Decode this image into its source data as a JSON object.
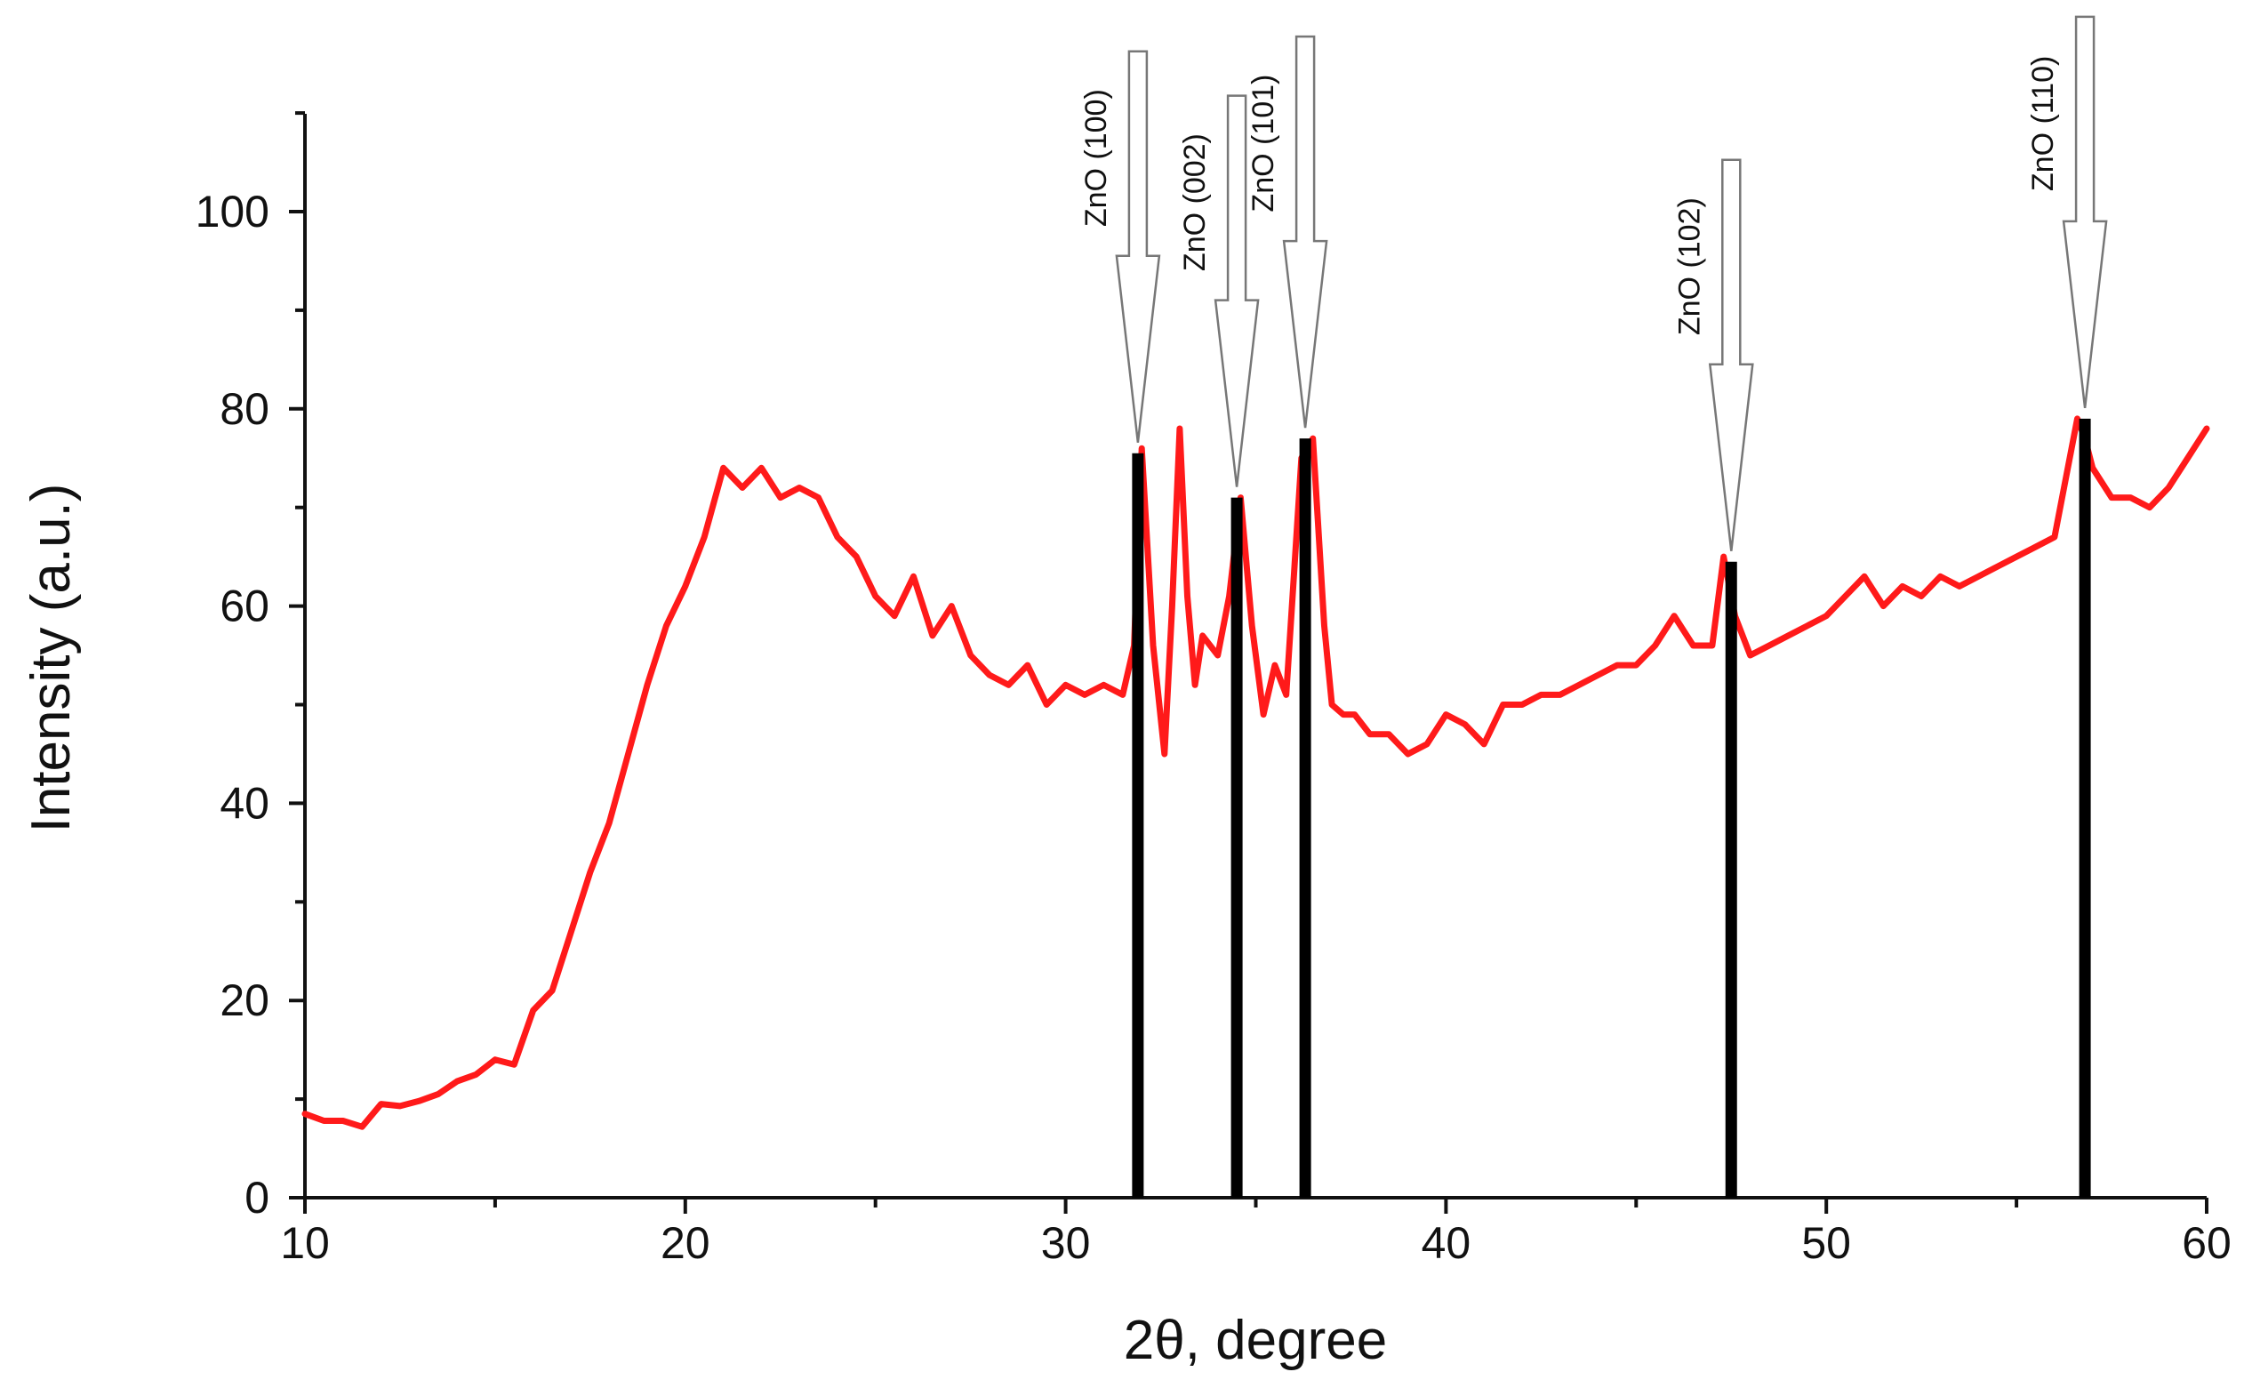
{
  "chart_data": {
    "type": "line",
    "xlabel": "2θ, degree",
    "ylabel": "Intensity (a.u.)",
    "xlim": [
      10,
      60
    ],
    "ylim": [
      0,
      110
    ],
    "x_ticks": [
      10,
      20,
      30,
      40,
      50,
      60
    ],
    "y_ticks": [
      0,
      20,
      40,
      60,
      80,
      100
    ],
    "grid": false,
    "colors": {
      "trace": "#ff1a1a",
      "peak_line": "#000000",
      "arrow": "#777777"
    },
    "series": [
      {
        "x": [
          10,
          10.5,
          11,
          11.5,
          12,
          12.5,
          13,
          13.5,
          14,
          14.5,
          15,
          15.5,
          16,
          16.5,
          17,
          17.5,
          18,
          18.5,
          19,
          19.5,
          20,
          20.5,
          21,
          21.5,
          22,
          22.5,
          23,
          23.5,
          24,
          24.5,
          25,
          25.5,
          26,
          26.5,
          27,
          27.5,
          28,
          28.5,
          29,
          29.5,
          30,
          30.5,
          31,
          31.5,
          31.8,
          32,
          32.3,
          32.6,
          32.8,
          33,
          33.2,
          33.4,
          33.6,
          33.8,
          34,
          34.3,
          34.6,
          34.9,
          35.2,
          35.5,
          35.8,
          36,
          36.2,
          36.5,
          36.8,
          37,
          37.3,
          37.6,
          38,
          38.5,
          39,
          39.5,
          40,
          40.5,
          41,
          41.5,
          42,
          42.5,
          43,
          43.5,
          44,
          44.5,
          45,
          45.5,
          46,
          46.5,
          47,
          47.3,
          47.6,
          48,
          48.5,
          49,
          49.5,
          50,
          50.5,
          51,
          51.5,
          52,
          52.5,
          53,
          53.5,
          54,
          54.5,
          55,
          55.5,
          56,
          56.3,
          56.6,
          56.8,
          57,
          57.5,
          58,
          58.5,
          59,
          59.5,
          60
        ],
        "y": [
          8.5,
          7.8,
          7.8,
          7.2,
          9.5,
          9.3,
          9.8,
          10.5,
          11.8,
          12.5,
          14,
          13.5,
          19,
          21,
          27,
          33,
          38,
          45,
          52,
          58,
          62,
          67,
          74,
          72,
          74,
          71,
          72,
          71,
          67,
          65,
          61,
          59,
          63,
          57,
          60,
          55,
          53,
          52,
          54,
          50,
          52,
          51,
          52,
          51,
          56,
          76,
          56,
          45,
          60,
          78,
          61,
          52,
          57,
          56,
          55,
          61,
          71,
          58,
          49,
          54,
          51,
          63,
          75,
          77,
          58,
          50,
          49,
          49,
          47,
          47,
          45,
          46,
          49,
          48,
          46,
          50,
          50,
          51,
          51,
          52,
          53,
          54,
          54,
          56,
          59,
          56,
          56,
          65,
          59,
          55,
          56,
          57,
          58,
          59,
          61,
          63,
          60,
          62,
          61,
          63,
          62,
          63,
          64,
          65,
          66,
          67,
          73,
          79,
          77,
          74,
          71,
          71,
          70,
          72,
          75,
          78
        ]
      }
    ],
    "peaks": [
      {
        "label": "ZnO (100)",
        "x": 31.9,
        "y": 75.5
      },
      {
        "label": "ZnO (002)",
        "x": 34.5,
        "y": 71
      },
      {
        "label": "ZnO (101)",
        "x": 36.3,
        "y": 77
      },
      {
        "label": "ZnO (102)",
        "x": 47.5,
        "y": 64.5
      },
      {
        "label": "ZnO (110)",
        "x": 56.8,
        "y": 79
      }
    ]
  }
}
